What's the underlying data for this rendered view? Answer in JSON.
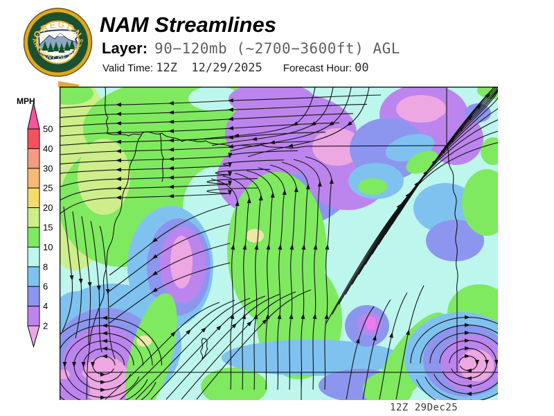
{
  "header": {
    "title": "NAM Streamlines",
    "layer_label": "Layer:",
    "layer_value": "90−120mb (~2700−3600ft) AGL",
    "valid_time_label": "Valid Time: ",
    "valid_time_value": "12Z  12/29/2025",
    "forecast_hour_label": "Forecast Hour: ",
    "forecast_hour_value": "00"
  },
  "logo": {
    "org_top": "OREGON",
    "org_arc": "DEPARTMENT OF FORESTRY"
  },
  "legend": {
    "title": "MPH",
    "ticks": [
      "50",
      "40",
      "30",
      "25",
      "20",
      "15",
      "10",
      "8",
      "6",
      "4",
      "2"
    ]
  },
  "map": {
    "caption": "12Z 29Dec25"
  },
  "colors": {
    "palette": {
      "gt50": "#F8549C",
      "b50_40": "#F4515C",
      "b40_30": "#F49B84",
      "b30_25": "#F4BB76",
      "b25_20": "#F4DC6A",
      "b20_15": "#CDEE8A",
      "b15_10": "#7FE960",
      "b10_8": "#BDF6EC",
      "b8_6": "#7FC2F0",
      "b6_4": "#8D96EE",
      "b4_2": "#BC85EE",
      "lt2": "#EDA7E2",
      "calm_yellow": "#EBE8A6",
      "calm_core": "#F07AEC",
      "corner_accent": "#E8A43C",
      "logo_gold": "#E2A71E",
      "logo_green": "#1B5130",
      "logo_text_gold": "#EDCA5A",
      "logo_navy": "#1F3F6E",
      "stream_black": "#121212"
    }
  }
}
